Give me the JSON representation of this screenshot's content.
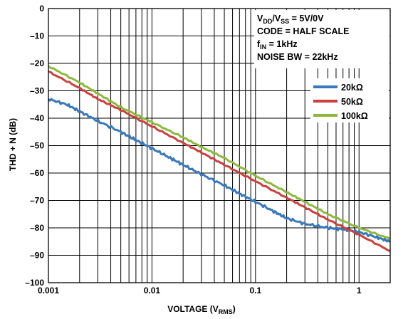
{
  "chart_data": {
    "type": "line",
    "xlabel": "VOLTAGE (V",
    "xlabel_sub": "RMS",
    "xlabel_end": ")",
    "ylabel": "THD + N (dB)",
    "xscale": "log",
    "xlim": [
      0.001,
      2
    ],
    "ylim": [
      -100,
      0
    ],
    "grid": true,
    "x_ticks": [
      {
        "value": 0.001,
        "label": "0.001"
      },
      {
        "value": 0.01,
        "label": "0.01"
      },
      {
        "value": 0.1,
        "label": "0.1"
      },
      {
        "value": 1,
        "label": "1"
      }
    ],
    "y_ticks": [
      {
        "value": 0,
        "label": "0"
      },
      {
        "value": -10,
        "label": "–10"
      },
      {
        "value": -20,
        "label": "–20"
      },
      {
        "value": -30,
        "label": "–30"
      },
      {
        "value": -40,
        "label": "–40"
      },
      {
        "value": -50,
        "label": "–50"
      },
      {
        "value": -60,
        "label": "–60"
      },
      {
        "value": -70,
        "label": "–70"
      },
      {
        "value": -80,
        "label": "–80"
      },
      {
        "value": -90,
        "label": "–90"
      },
      {
        "value": -100,
        "label": "–100"
      }
    ],
    "annotations": [
      {
        "main": "V",
        "sub1": "DD",
        "mid": "/V",
        "sub2": "SS",
        "rest": " = 5V/0V"
      },
      {
        "main": "CODE = HALF SCALE"
      },
      {
        "main": "f",
        "sub1": "IN",
        "rest": " = 1kHz"
      },
      {
        "main": "NOISE BW = 22kHz"
      }
    ],
    "legend_position": "top-right",
    "series": [
      {
        "name": "20kΩ",
        "color": "#3a78b8",
        "x": [
          0.001,
          0.0015,
          0.002,
          0.003,
          0.005,
          0.007,
          0.01,
          0.015,
          0.02,
          0.03,
          0.05,
          0.07,
          0.1,
          0.15,
          0.2,
          0.3,
          0.5,
          0.7,
          1,
          1.5,
          2
        ],
        "y": [
          -33,
          -35,
          -37.5,
          -41,
          -45,
          -48,
          -51,
          -54.5,
          -57,
          -60.5,
          -64.5,
          -67.5,
          -70.5,
          -74,
          -76.5,
          -78.5,
          -80,
          -80.5,
          -81.5,
          -83.5,
          -85
        ]
      },
      {
        "name": "50kΩ",
        "color": "#c8413c",
        "x": [
          0.001,
          0.002,
          0.003,
          0.005,
          0.01,
          0.02,
          0.03,
          0.05,
          0.1,
          0.2,
          0.3,
          0.5,
          1,
          2
        ],
        "y": [
          -23,
          -29,
          -33,
          -37,
          -43,
          -49,
          -52.5,
          -57,
          -63,
          -69,
          -72.5,
          -77,
          -82.5,
          -88.5
        ]
      },
      {
        "name": "100kΩ",
        "color": "#8db83f",
        "x": [
          0.001,
          0.002,
          0.003,
          0.005,
          0.01,
          0.02,
          0.03,
          0.05,
          0.1,
          0.2,
          0.3,
          0.5,
          1,
          2
        ],
        "y": [
          -21,
          -27,
          -31,
          -36,
          -41.5,
          -47,
          -50.5,
          -54.5,
          -61,
          -67,
          -70.5,
          -75,
          -80,
          -84
        ]
      }
    ]
  }
}
